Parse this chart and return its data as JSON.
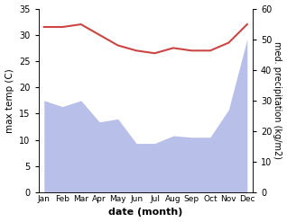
{
  "months": [
    "Jan",
    "Feb",
    "Mar",
    "Apr",
    "May",
    "Jun",
    "Jul",
    "Aug",
    "Sep",
    "Oct",
    "Nov",
    "Dec"
  ],
  "temperature": [
    31.5,
    31.5,
    32.0,
    30.0,
    28.0,
    27.0,
    26.5,
    27.5,
    27.0,
    27.0,
    28.5,
    32.0
  ],
  "precipitation": [
    30,
    28,
    30,
    23,
    24,
    16,
    16,
    18.5,
    18,
    18,
    27,
    50
  ],
  "temp_color": "#cc4444",
  "precip_color": "#b8bfe8",
  "bg_color": "#ffffff",
  "ylabel_left": "max temp (C)",
  "ylabel_right": "med. precipitation (kg/m2)",
  "xlabel": "date (month)",
  "ylim_left": [
    0,
    35
  ],
  "ylim_right": [
    0,
    60
  ],
  "yticks_left": [
    0,
    5,
    10,
    15,
    20,
    25,
    30,
    35
  ],
  "yticks_right": [
    0,
    10,
    20,
    30,
    40,
    50,
    60
  ]
}
